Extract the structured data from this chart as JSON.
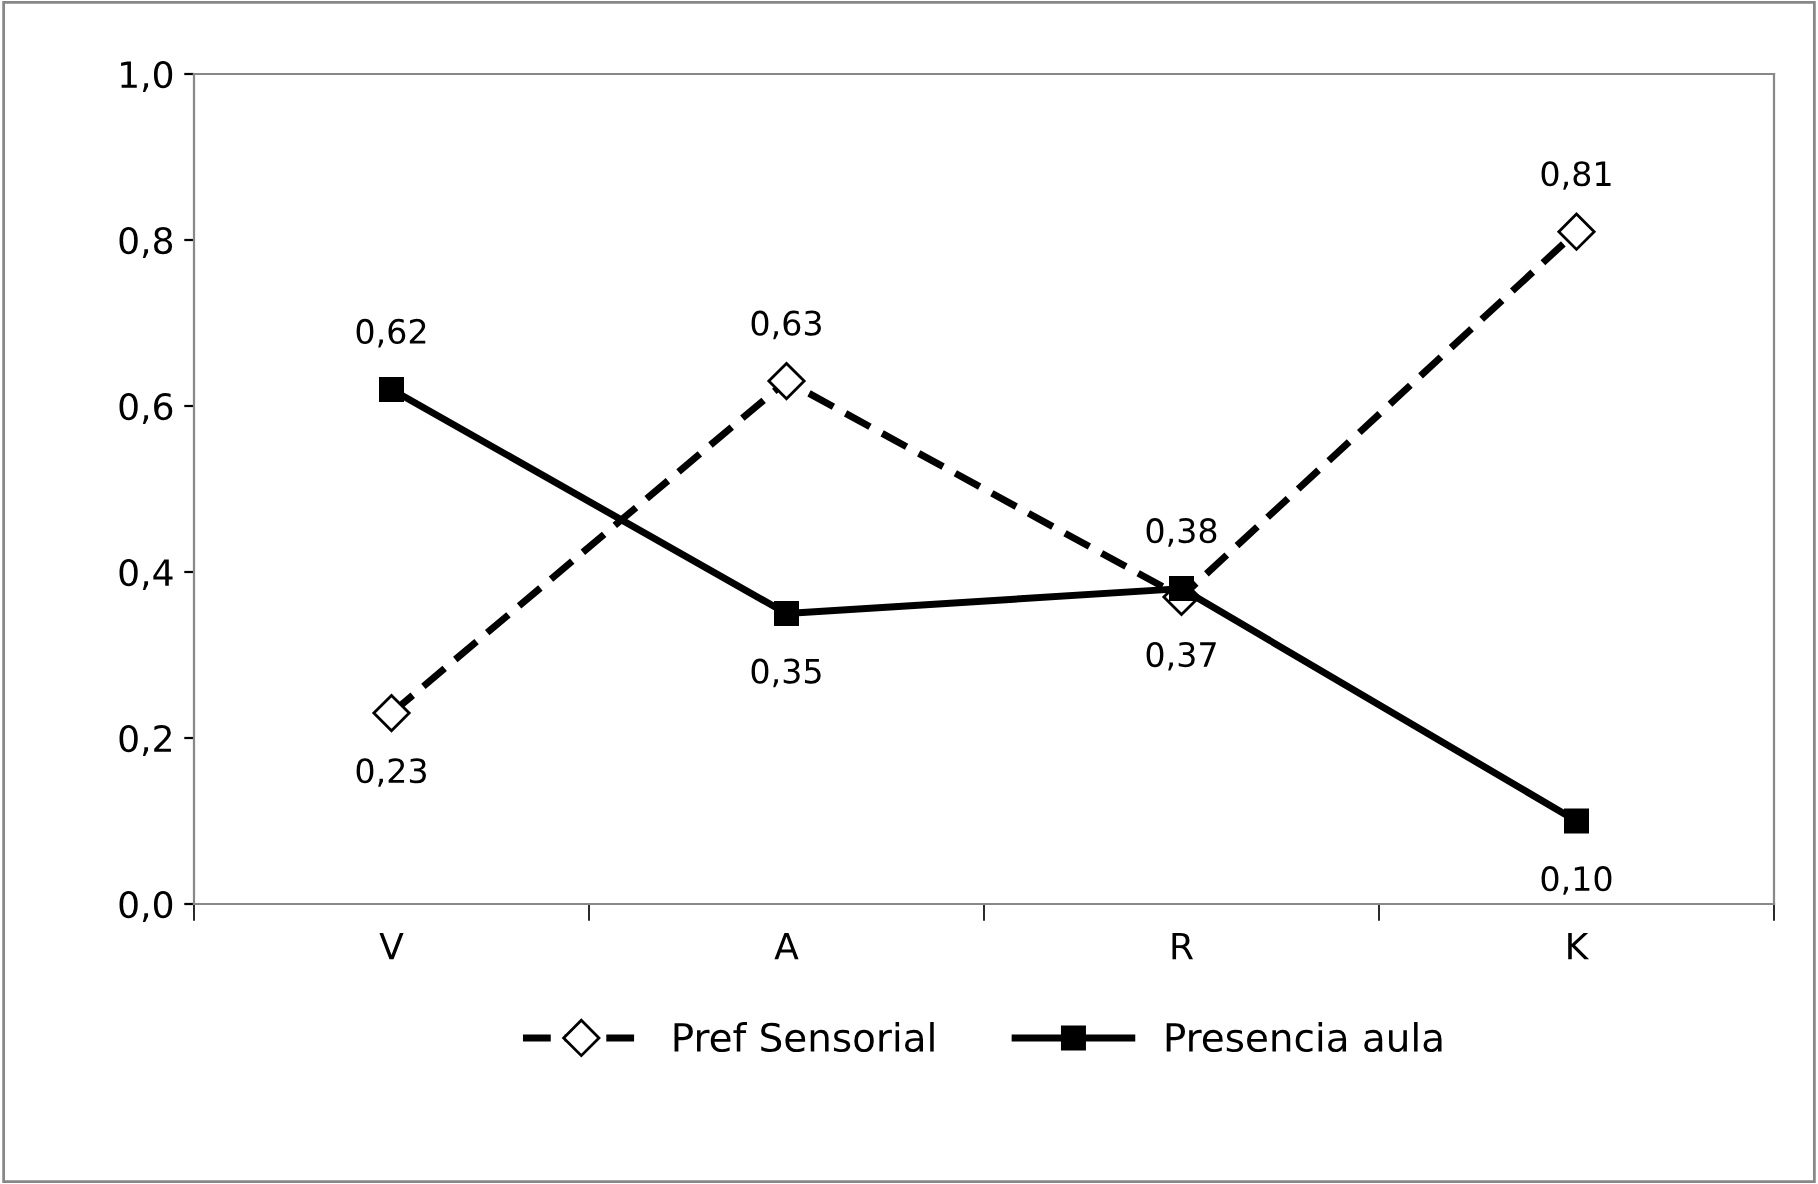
{
  "chart_data": {
    "type": "line",
    "categories": [
      "V",
      "A",
      "R",
      "K"
    ],
    "series": [
      {
        "name": "Pref Sensorial",
        "color": "#000000",
        "marker": "diamond",
        "line_style": "dashed",
        "values": [
          0.23,
          0.63,
          0.37,
          0.81
        ],
        "value_labels": [
          "0,23",
          "0,63",
          "0,37",
          "0,81"
        ]
      },
      {
        "name": "Presencia aula",
        "color": "#000000",
        "marker": "square",
        "line_style": "solid",
        "values": [
          0.62,
          0.35,
          0.38,
          0.1
        ],
        "value_labels": [
          "0,62",
          "0,35",
          "0,38",
          "0,10"
        ]
      }
    ],
    "ylim": [
      0,
      1
    ],
    "yticks": [
      {
        "value": 0,
        "label": "0,0"
      },
      {
        "value": 0.2,
        "label": "0,2"
      },
      {
        "value": 0.4,
        "label": "0,4"
      },
      {
        "value": 0.6,
        "label": "0,6"
      },
      {
        "value": 0.8,
        "label": "0,8"
      },
      {
        "value": 1,
        "label": "1,0"
      }
    ],
    "grid": false,
    "legend": "bottom"
  }
}
